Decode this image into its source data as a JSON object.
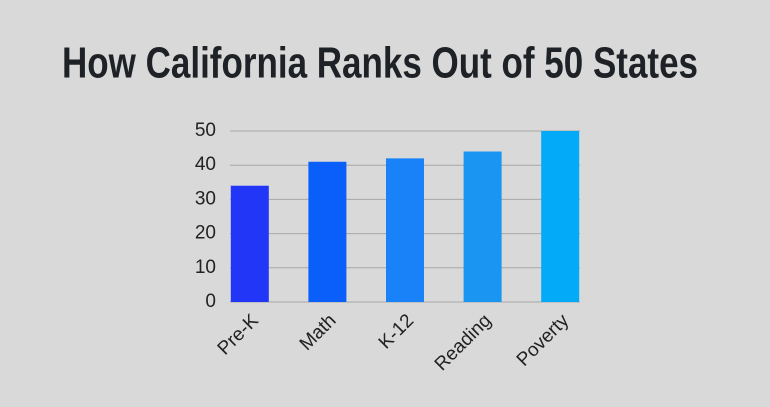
{
  "chart_data": {
    "type": "bar",
    "title": "How California Ranks Out of 50 States",
    "categories": [
      "Pre-K",
      "Math",
      "K-12",
      "Reading",
      "Poverty"
    ],
    "values": [
      34,
      41,
      42,
      44,
      50
    ],
    "colors": [
      "#2236f8",
      "#0a5ffb",
      "#1a82f8",
      "#1a95f2",
      "#02aaf8"
    ],
    "ylim": [
      0,
      50
    ],
    "yticks": [
      0,
      10,
      20,
      30,
      40,
      50
    ],
    "grid": true
  }
}
